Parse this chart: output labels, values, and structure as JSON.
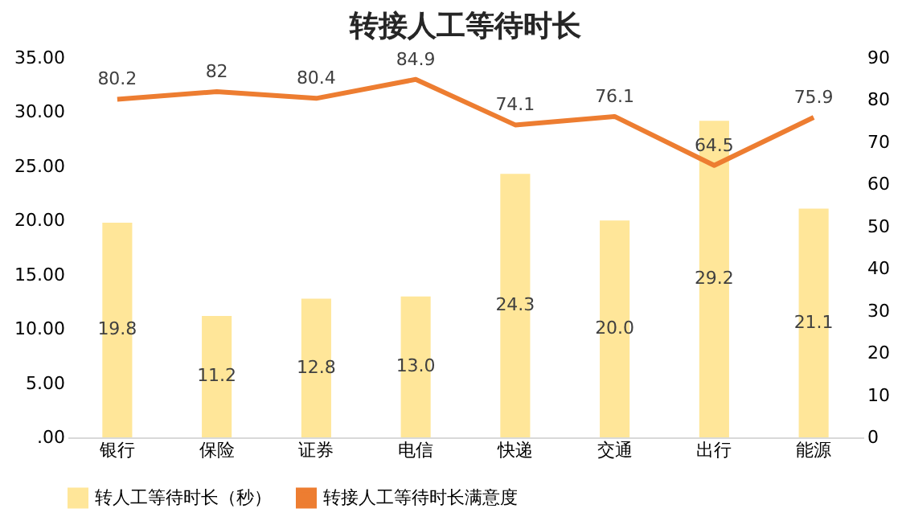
{
  "chart_data": {
    "type": "bar",
    "title": "转接人工等待时长",
    "categories": [
      "银行",
      "保险",
      "证券",
      "电信",
      "快递",
      "交通",
      "出行",
      "能源"
    ],
    "series": [
      {
        "name": "转人工等待时长（秒）",
        "color": "#ffe699",
        "values": [
          19.8,
          11.2,
          12.8,
          13.0,
          24.3,
          20.0,
          29.2,
          21.1
        ],
        "value_labels": [
          "19.8",
          "11.2",
          "12.8",
          "13.0",
          "24.3",
          "20.0",
          "29.2",
          "21.1"
        ]
      },
      {
        "name": "转接人工等待时长满意度",
        "type": "line",
        "axis": "y2",
        "color": "#ed7d31",
        "values": [
          80.2,
          82,
          80.4,
          84.9,
          74.1,
          76.1,
          64.5,
          75.9
        ],
        "value_labels": [
          "80.2",
          "82",
          "80.4",
          "84.9",
          "74.1",
          "76.1",
          "64.5",
          "75.9"
        ]
      }
    ],
    "ylim": [
      0,
      35
    ],
    "yticks": [
      {
        "value": 0,
        "label": ".00"
      },
      {
        "value": 5,
        "label": "5.00"
      },
      {
        "value": 10,
        "label": "10.00"
      },
      {
        "value": 15,
        "label": "15.00"
      },
      {
        "value": 20,
        "label": "20.00"
      },
      {
        "value": 25,
        "label": "25.00"
      },
      {
        "value": 30,
        "label": "30.00"
      },
      {
        "value": 35,
        "label": "35.00"
      }
    ],
    "y2lim": [
      0,
      90
    ],
    "y2ticks": [
      0,
      10,
      20,
      30,
      40,
      50,
      60,
      70,
      80,
      90
    ],
    "legend": "bottom",
    "marker": "none",
    "line_style": "solid"
  }
}
